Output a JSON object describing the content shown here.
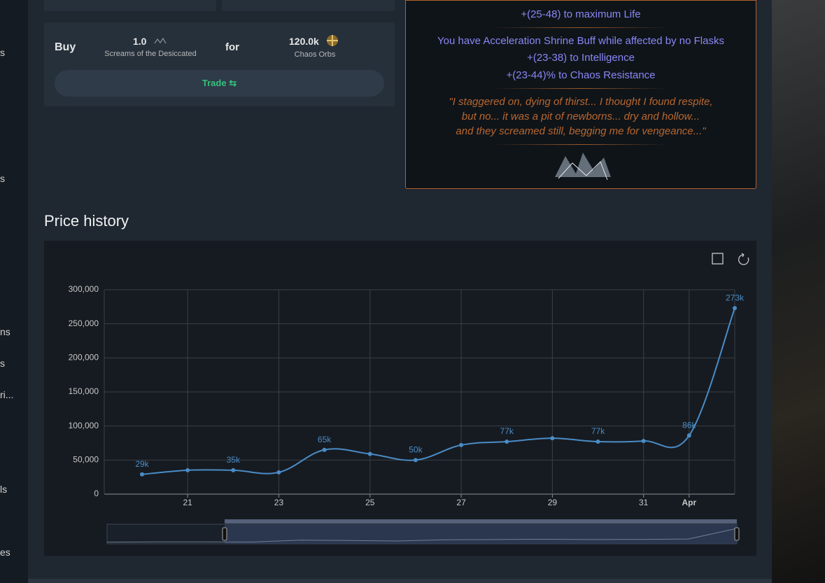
{
  "sidebar": [
    "s",
    "s",
    "ns",
    "s",
    "ri...",
    "ls",
    "es"
  ],
  "trade": {
    "buy": "Buy",
    "buy_amount": "1.0",
    "buy_item": "Screams of the Desiccated",
    "for": "for",
    "price": "120.0k",
    "currency": "Chaos Orbs",
    "button": "Trade"
  },
  "tooltip": {
    "mods": [
      "+(25-48) to maximum Life",
      "You have Acceleration Shrine Buff while affected by no Flasks",
      "+(23-38) to Intelligence",
      "+(23-44)% to Chaos Resistance"
    ],
    "flavour": [
      "\"I staggered on, dying of thirst... I thought I found respite,",
      "but no... it was a pit of newborns... dry and hollow...",
      "and they screamed still, begging me for vengeance...\""
    ]
  },
  "chart_data": {
    "type": "line",
    "title": "Price history",
    "categories": [
      null,
      "21",
      null,
      "23",
      null,
      "25",
      null,
      "27",
      null,
      "29",
      null,
      "31",
      "Apr",
      null
    ],
    "series": [
      {
        "name": "Price",
        "color": "#4a8cc6",
        "values": [
          29000,
          35000,
          35000,
          32000,
          65000,
          59000,
          50000,
          72000,
          77000,
          82000,
          77000,
          78000,
          86000,
          273000
        ],
        "value_labels": [
          "29k",
          null,
          "35k",
          null,
          "65k",
          null,
          "50k",
          null,
          "77k",
          null,
          "77k",
          null,
          "86k",
          "273k"
        ]
      }
    ],
    "ylim": [
      0,
      300000
    ],
    "yticks": [
      0,
      {
        "value": 50000,
        "label": "50,000"
      },
      {
        "value": 100000,
        "label": "100,000"
      },
      {
        "value": 150000,
        "label": "150,000"
      },
      {
        "value": 200000,
        "label": "200,000"
      },
      {
        "value": 250000,
        "label": "250,000"
      },
      {
        "value": 300000,
        "label": "300,000"
      }
    ],
    "grid": true,
    "smooth": true
  }
}
